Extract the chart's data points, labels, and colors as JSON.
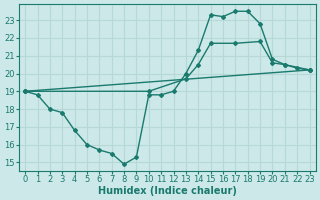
{
  "line1_x": [
    0,
    1,
    2,
    3,
    4,
    5,
    6,
    7,
    8,
    9,
    10,
    11,
    12,
    13,
    14,
    15,
    16,
    17,
    18,
    19,
    20,
    21,
    22,
    23
  ],
  "line1_y": [
    19.0,
    18.8,
    18.0,
    17.8,
    16.8,
    16.0,
    15.7,
    15.5,
    14.9,
    15.3,
    18.8,
    18.8,
    19.0,
    20.0,
    21.3,
    23.3,
    23.2,
    23.5,
    23.5,
    22.8,
    20.8,
    20.5,
    20.3,
    20.2
  ],
  "line2_x": [
    0,
    10,
    13,
    14,
    15,
    17,
    19,
    20,
    21,
    23
  ],
  "line2_y": [
    19.0,
    19.0,
    19.7,
    20.5,
    21.7,
    21.7,
    21.8,
    20.6,
    20.5,
    20.2
  ],
  "line3_x": [
    0,
    23
  ],
  "line3_y": [
    19.0,
    20.2
  ],
  "color": "#1a7a6e",
  "bg_color": "#cce8e8",
  "grid_color": "#b8d8d8",
  "xlabel": "Humidex (Indice chaleur)",
  "xlim": [
    -0.5,
    23.5
  ],
  "ylim": [
    14.5,
    23.9
  ],
  "yticks": [
    15,
    16,
    17,
    18,
    19,
    20,
    21,
    22,
    23
  ],
  "xticks": [
    0,
    1,
    2,
    3,
    4,
    5,
    6,
    7,
    8,
    9,
    10,
    11,
    12,
    13,
    14,
    15,
    16,
    17,
    18,
    19,
    20,
    21,
    22,
    23
  ],
  "marker": "D",
  "marker_size": 2.0,
  "linewidth": 1.0,
  "font_size": 6,
  "label_font_size": 7
}
